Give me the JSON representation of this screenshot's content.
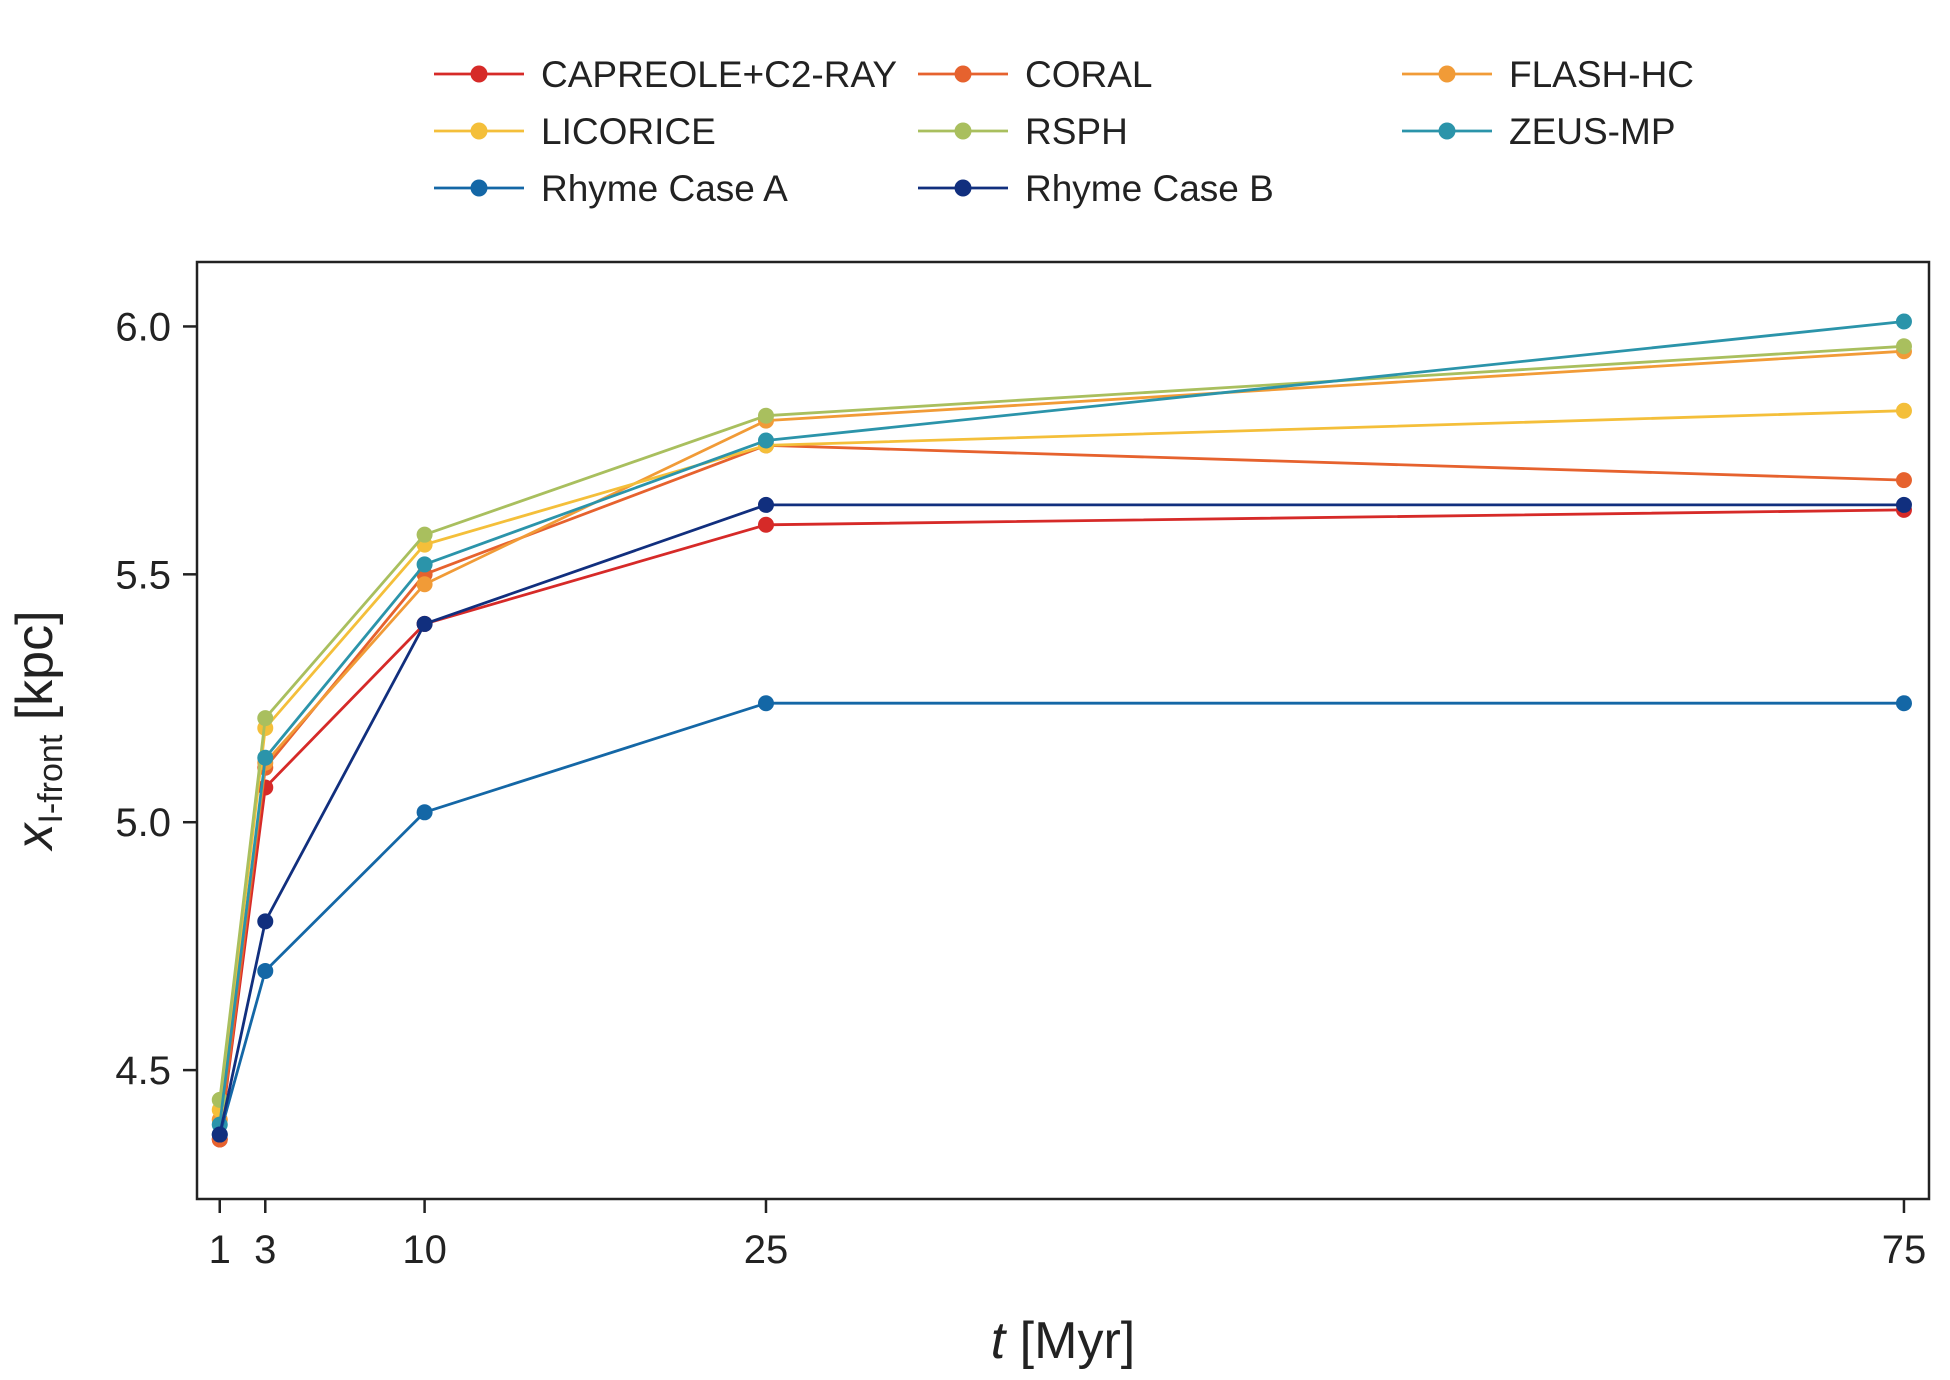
{
  "chart_data": {
    "type": "line",
    "title": "",
    "xlabel": {
      "italic": "t",
      "rest": " [Myr]"
    },
    "ylabel": {
      "base": "x",
      "sub": "I-front",
      "rest": " [kpc]"
    },
    "x": [
      1,
      3,
      10,
      25,
      75
    ],
    "x_tick_labels": [
      "1",
      "3",
      "10",
      "25",
      "75"
    ],
    "xlim": [
      0,
      76.1
    ],
    "ylim": [
      4.24,
      6.13
    ],
    "y_ticks": [
      4.5,
      5.0,
      5.5,
      6.0
    ],
    "y_tick_labels": [
      "4.5",
      "5.0",
      "5.5",
      "6.0"
    ],
    "grid": false,
    "legend_position": "top-center",
    "legend_columns": 3,
    "series": [
      {
        "name": "CAPREOLE+C2-RAY",
        "color": "#d62a28",
        "values": [
          4.36,
          5.07,
          5.4,
          5.6,
          5.63
        ]
      },
      {
        "name": "CORAL",
        "color": "#e6622e",
        "values": [
          4.36,
          5.11,
          5.5,
          5.76,
          5.69
        ]
      },
      {
        "name": "FLASH-HC",
        "color": "#f19b37",
        "values": [
          4.4,
          5.12,
          5.48,
          5.81,
          5.95
        ]
      },
      {
        "name": "LICORICE",
        "color": "#f4bf3a",
        "values": [
          4.42,
          5.19,
          5.56,
          5.76,
          5.83
        ]
      },
      {
        "name": "RSPH",
        "color": "#a9bf5e",
        "values": [
          4.44,
          5.21,
          5.58,
          5.82,
          5.96
        ]
      },
      {
        "name": "ZEUS-MP",
        "color": "#2b94aa",
        "values": [
          4.39,
          5.13,
          5.52,
          5.77,
          6.01
        ]
      },
      {
        "name": "Rhyme Case A",
        "color": "#1467a6",
        "values": [
          4.37,
          4.7,
          5.02,
          5.24,
          5.24
        ]
      },
      {
        "name": "Rhyme Case B",
        "color": "#112f7e",
        "values": [
          4.37,
          4.8,
          5.4,
          5.64,
          5.64
        ]
      }
    ]
  }
}
